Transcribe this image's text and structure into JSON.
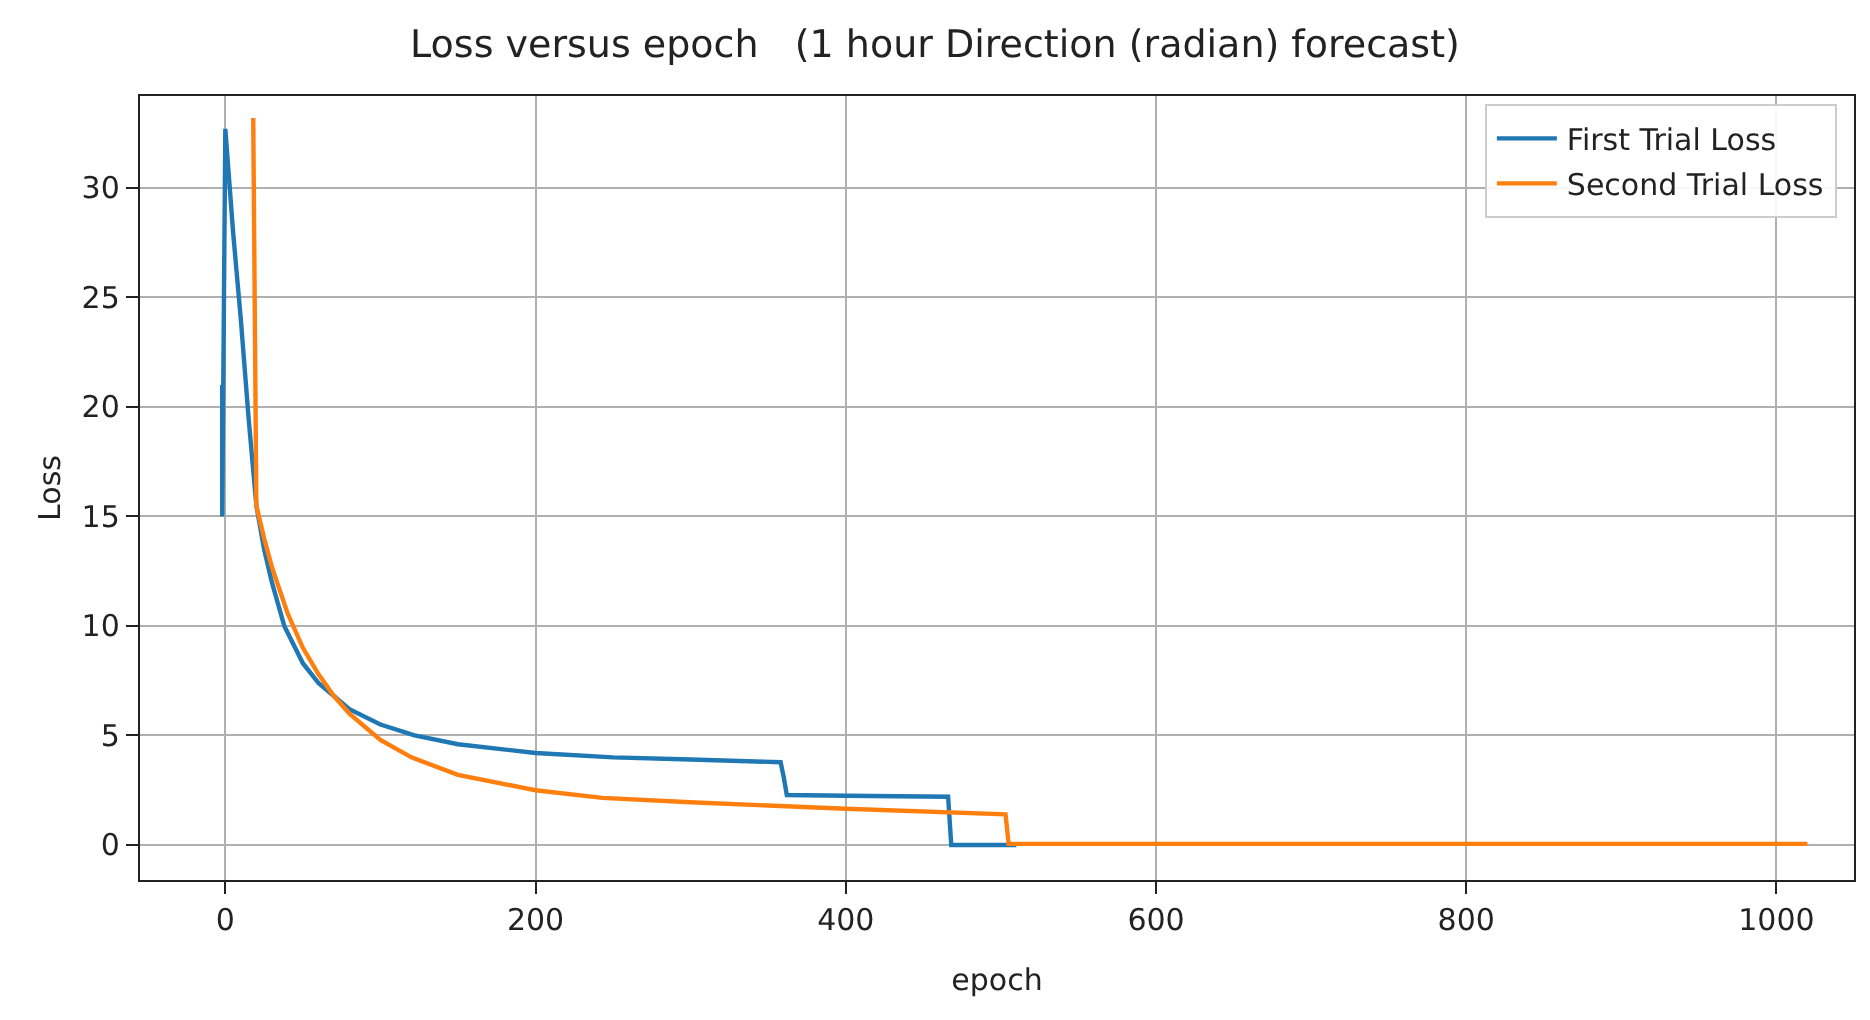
{
  "chart_data": {
    "type": "line",
    "title": "Loss versus epoch   (1 hour Direction (radian) forecast)",
    "xlabel": "epoch",
    "ylabel": "Loss",
    "xlim": [
      -55,
      1050
    ],
    "xticks": [
      0,
      200,
      400,
      600,
      800,
      1000
    ],
    "ylim": [
      -1.6,
      34.2
    ],
    "yticks": [
      0,
      5,
      10,
      15,
      20,
      25,
      30
    ],
    "grid": true,
    "legend": "top right",
    "marker": "none",
    "line_style": "solid",
    "series": [
      {
        "name": "First Trial Loss",
        "color": "#1f77b4",
        "x": [
          -2,
          -2,
          0,
          5,
          10,
          15,
          20,
          25,
          30,
          38,
          50,
          60,
          70,
          80,
          100,
          122,
          150,
          200,
          250,
          300,
          358,
          360,
          362,
          400,
          466,
          468,
          510
        ],
        "values": [
          21,
          15,
          32.7,
          28,
          24,
          19.5,
          15.5,
          13.5,
          12,
          10,
          8.3,
          7.4,
          6.8,
          6.2,
          5.5,
          5,
          4.6,
          4.2,
          4,
          3.9,
          3.78,
          3.1,
          2.28,
          2.25,
          2.2,
          0,
          0
        ]
      },
      {
        "name": "Second Trial Loss",
        "color": "#ff7f0e",
        "x": [
          18,
          20,
          25,
          30,
          40,
          50,
          60,
          70,
          80,
          100,
          120,
          150,
          200,
          243,
          300,
          400,
          503,
          505,
          600,
          800,
          1020
        ],
        "values": [
          33.2,
          15.5,
          14,
          12.7,
          10.6,
          9,
          7.8,
          6.8,
          6,
          4.8,
          4,
          3.2,
          2.5,
          2.15,
          1.95,
          1.65,
          1.4,
          0.05,
          0.05,
          0.05,
          0.05
        ]
      }
    ]
  }
}
